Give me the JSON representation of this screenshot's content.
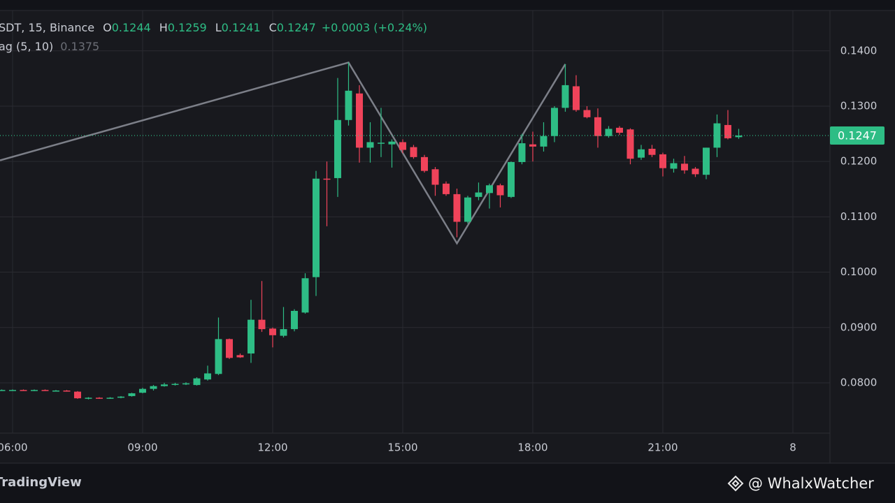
{
  "chart_data": {
    "type": "candlestick",
    "legend_symbol": "SDT, 15, Binance",
    "ohlc_legend": [
      {
        "key": "O",
        "value": 0.1244
      },
      {
        "key": "H",
        "value": 0.1259
      },
      {
        "key": "L",
        "value": 0.1241
      },
      {
        "key": "C",
        "value": 0.1247
      }
    ],
    "change": "+0.0003 (+0.24%)",
    "indicator": {
      "name": "ag (5, 10)",
      "value": 0.1375,
      "color": "#7c7f88",
      "x": [
        5.71,
        13.75,
        16.25,
        18.75
      ],
      "values": [
        0.1202,
        0.1379,
        0.1052,
        0.1376
      ]
    },
    "up_color": "#2ebd85",
    "down_color": "#f0435a",
    "x": [
      5.75,
      6,
      6.25,
      6.5,
      6.75,
      7,
      7.25,
      7.5,
      7.75,
      8,
      8.25,
      8.5,
      8.75,
      9,
      9.25,
      9.5,
      9.75,
      10,
      10.25,
      10.5,
      10.75,
      11,
      11.25,
      11.5,
      11.75,
      12,
      12.25,
      12.5,
      12.75,
      13,
      13.25,
      13.5,
      13.75,
      14,
      14.25,
      14.5,
      14.75,
      15,
      15.25,
      15.5,
      15.75,
      16,
      16.25,
      16.5,
      16.75,
      17,
      17.25,
      17.5,
      17.75,
      18,
      18.25,
      18.5,
      18.75,
      19,
      19.25,
      19.5,
      19.75,
      20,
      20.25,
      20.5,
      20.75,
      21,
      21.25,
      21.5,
      21.75,
      22,
      22.25,
      22.5,
      22.75
    ],
    "open": [
      0.0787,
      0.0787,
      0.0787,
      0.0786,
      0.0787,
      0.0786,
      0.0786,
      0.0784,
      0.0772,
      0.0773,
      0.0772,
      0.0773,
      0.0776,
      0.0782,
      0.0789,
      0.0794,
      0.0797,
      0.0798,
      0.0796,
      0.0806,
      0.0816,
      0.0879,
      0.085,
      0.0853,
      0.0914,
      0.0898,
      0.0885,
      0.0897,
      0.0927,
      0.0991,
      0.1169,
      0.117,
      0.1275,
      0.1323,
      0.1225,
      0.1233,
      0.1231,
      0.1235,
      0.1226,
      0.1208,
      0.1186,
      0.116,
      0.1141,
      0.1091,
      0.1136,
      0.1143,
      0.1157,
      0.1136,
      0.1199,
      0.1231,
      0.1227,
      0.1246,
      0.1297,
      0.1336,
      0.1293,
      0.128,
      0.1246,
      0.1261,
      0.1258,
      0.1207,
      0.1223,
      0.1213,
      0.1187,
      0.1196,
      0.1187,
      0.1176,
      0.1225,
      0.1266,
      0.1244
    ],
    "high": [
      0.0788,
      0.0788,
      0.0788,
      0.0788,
      0.0788,
      0.0787,
      0.0787,
      0.0785,
      0.0774,
      0.0774,
      0.0774,
      0.0776,
      0.0782,
      0.0791,
      0.0796,
      0.08,
      0.08,
      0.0801,
      0.081,
      0.0831,
      0.0918,
      0.088,
      0.0853,
      0.095,
      0.0984,
      0.09,
      0.0937,
      0.0933,
      0.0998,
      0.1183,
      0.12,
      0.1351,
      0.1379,
      0.1338,
      0.1271,
      0.1297,
      0.124,
      0.124,
      0.123,
      0.1212,
      0.119,
      0.1164,
      0.1151,
      0.1138,
      0.1162,
      0.116,
      0.116,
      0.12,
      0.125,
      0.1254,
      0.1271,
      0.13,
      0.1376,
      0.1356,
      0.13,
      0.1296,
      0.1264,
      0.1264,
      0.126,
      0.123,
      0.123,
      0.1216,
      0.1205,
      0.121,
      0.119,
      0.1225,
      0.1285,
      0.1293,
      0.1259
    ],
    "low": [
      0.0786,
      0.0786,
      0.0786,
      0.0785,
      0.0786,
      0.0785,
      0.0784,
      0.0771,
      0.077,
      0.0771,
      0.0771,
      0.0772,
      0.0775,
      0.0781,
      0.0786,
      0.0793,
      0.0795,
      0.0796,
      0.0795,
      0.0804,
      0.0814,
      0.0843,
      0.0845,
      0.0836,
      0.0892,
      0.0864,
      0.0882,
      0.0893,
      0.0925,
      0.0957,
      0.1083,
      0.1136,
      0.1265,
      0.1198,
      0.1198,
      0.1208,
      0.1189,
      0.1215,
      0.1205,
      0.118,
      0.1138,
      0.1138,
      0.1063,
      0.1088,
      0.113,
      0.1115,
      0.1117,
      0.1134,
      0.1195,
      0.12,
      0.1218,
      0.1235,
      0.129,
      0.129,
      0.1278,
      0.1225,
      0.1243,
      0.1248,
      0.1195,
      0.1203,
      0.1208,
      0.1173,
      0.118,
      0.1178,
      0.1172,
      0.1168,
      0.1208,
      0.124,
      0.1241
    ],
    "close": [
      0.0787,
      0.0787,
      0.0786,
      0.0787,
      0.0786,
      0.0786,
      0.0785,
      0.0772,
      0.0773,
      0.0772,
      0.0773,
      0.0775,
      0.0781,
      0.0789,
      0.0794,
      0.0797,
      0.0798,
      0.0799,
      0.0808,
      0.0817,
      0.0879,
      0.0845,
      0.0846,
      0.0914,
      0.0897,
      0.0886,
      0.0897,
      0.093,
      0.0989,
      0.1169,
      0.1168,
      0.1275,
      0.1328,
      0.1225,
      0.1235,
      0.1234,
      0.1236,
      0.1221,
      0.1208,
      0.1183,
      0.1158,
      0.1141,
      0.1091,
      0.1135,
      0.1144,
      0.1157,
      0.1139,
      0.1199,
      0.1233,
      0.1227,
      0.1246,
      0.1297,
      0.1338,
      0.1293,
      0.128,
      0.1246,
      0.1259,
      0.1252,
      0.1205,
      0.1222,
      0.1212,
      0.1188,
      0.1197,
      0.1184,
      0.1177,
      0.1225,
      0.1269,
      0.1242,
      0.1247
    ],
    "last_price": {
      "value": 0.1247,
      "label": "0.1247"
    },
    "xlim": [
      5.71,
      24.855
    ],
    "xticks": [
      {
        "value": 6,
        "label": "06:00"
      },
      {
        "value": 9,
        "label": "09:00"
      },
      {
        "value": 12,
        "label": "12:00"
      },
      {
        "value": 15,
        "label": "15:00"
      },
      {
        "value": 18,
        "label": "18:00"
      },
      {
        "value": 21,
        "label": "21:00"
      },
      {
        "value": 24,
        "label": "8"
      }
    ],
    "ylim": [
      0.0709,
      0.1473
    ],
    "yticks": [
      {
        "value": 0.08,
        "label": "0.0800"
      },
      {
        "value": 0.09,
        "label": "0.0900"
      },
      {
        "value": 0.1,
        "label": "0.1000"
      },
      {
        "value": 0.11,
        "label": "0.1100"
      },
      {
        "value": 0.12,
        "label": "0.1200"
      },
      {
        "value": 0.13,
        "label": "0.1300"
      },
      {
        "value": 0.14,
        "label": "0.1400"
      }
    ],
    "grid": true
  },
  "footer": {
    "brand": "TradingView",
    "watermark": "@ WhalxWatcher"
  }
}
